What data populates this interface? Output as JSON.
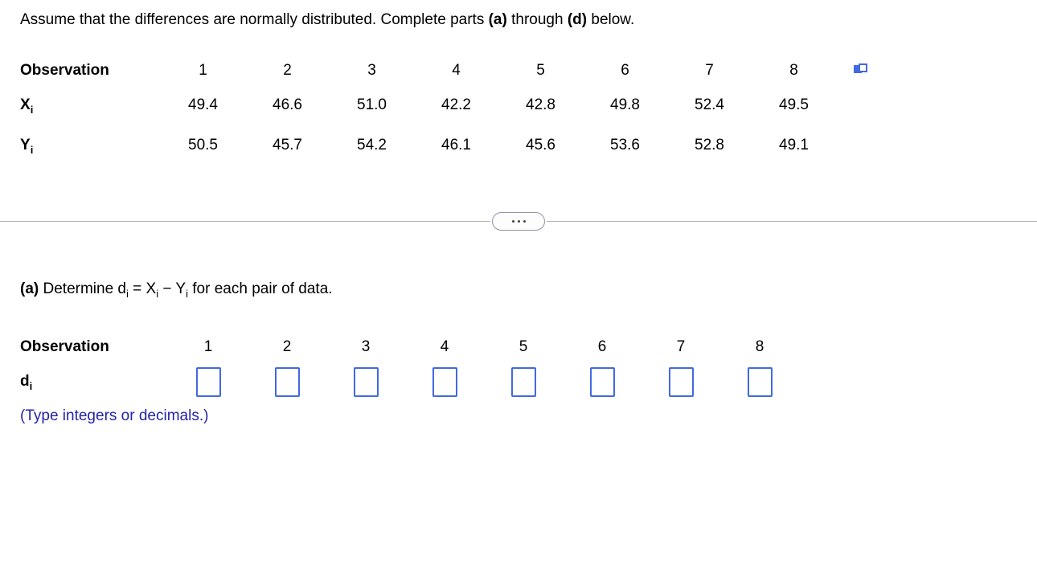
{
  "colors": {
    "accent_blue": "#4169e1",
    "hint_text_blue": "#2323a9",
    "divider_gray": "#b3b3b3"
  },
  "instructions": {
    "t1": "Assume that the differences are normally distributed. Complete parts ",
    "b1": "(a)",
    "t2": " through ",
    "b2": "(d)",
    "t3": " below."
  },
  "data_table": {
    "header_label": "Observation",
    "observations": [
      "1",
      "2",
      "3",
      "4",
      "5",
      "6",
      "7",
      "8"
    ],
    "x_row": {
      "label": "X",
      "sub": "i",
      "values": [
        "49.4",
        "46.6",
        "51.0",
        "42.2",
        "42.8",
        "49.8",
        "52.4",
        "49.5"
      ]
    },
    "y_row": {
      "label": "Y",
      "sub": "i",
      "values": [
        "50.5",
        "45.7",
        "54.2",
        "46.1",
        "45.6",
        "53.6",
        "52.8",
        "49.1"
      ]
    }
  },
  "part_a": {
    "label": "(a)",
    "t1": " Determine d",
    "s1": "i",
    "t2": " = X",
    "s2": "i",
    "t3": " − Y",
    "s3": "i",
    "t4": " for each pair of data."
  },
  "answer_table": {
    "header_label": "Observation",
    "observations": [
      "1",
      "2",
      "3",
      "4",
      "5",
      "6",
      "7",
      "8"
    ],
    "d_row": {
      "label": "d",
      "sub": "i",
      "values": [
        "",
        "",
        "",
        "",
        "",
        "",
        "",
        ""
      ]
    }
  },
  "hint": "(Type integers or decimals.)"
}
